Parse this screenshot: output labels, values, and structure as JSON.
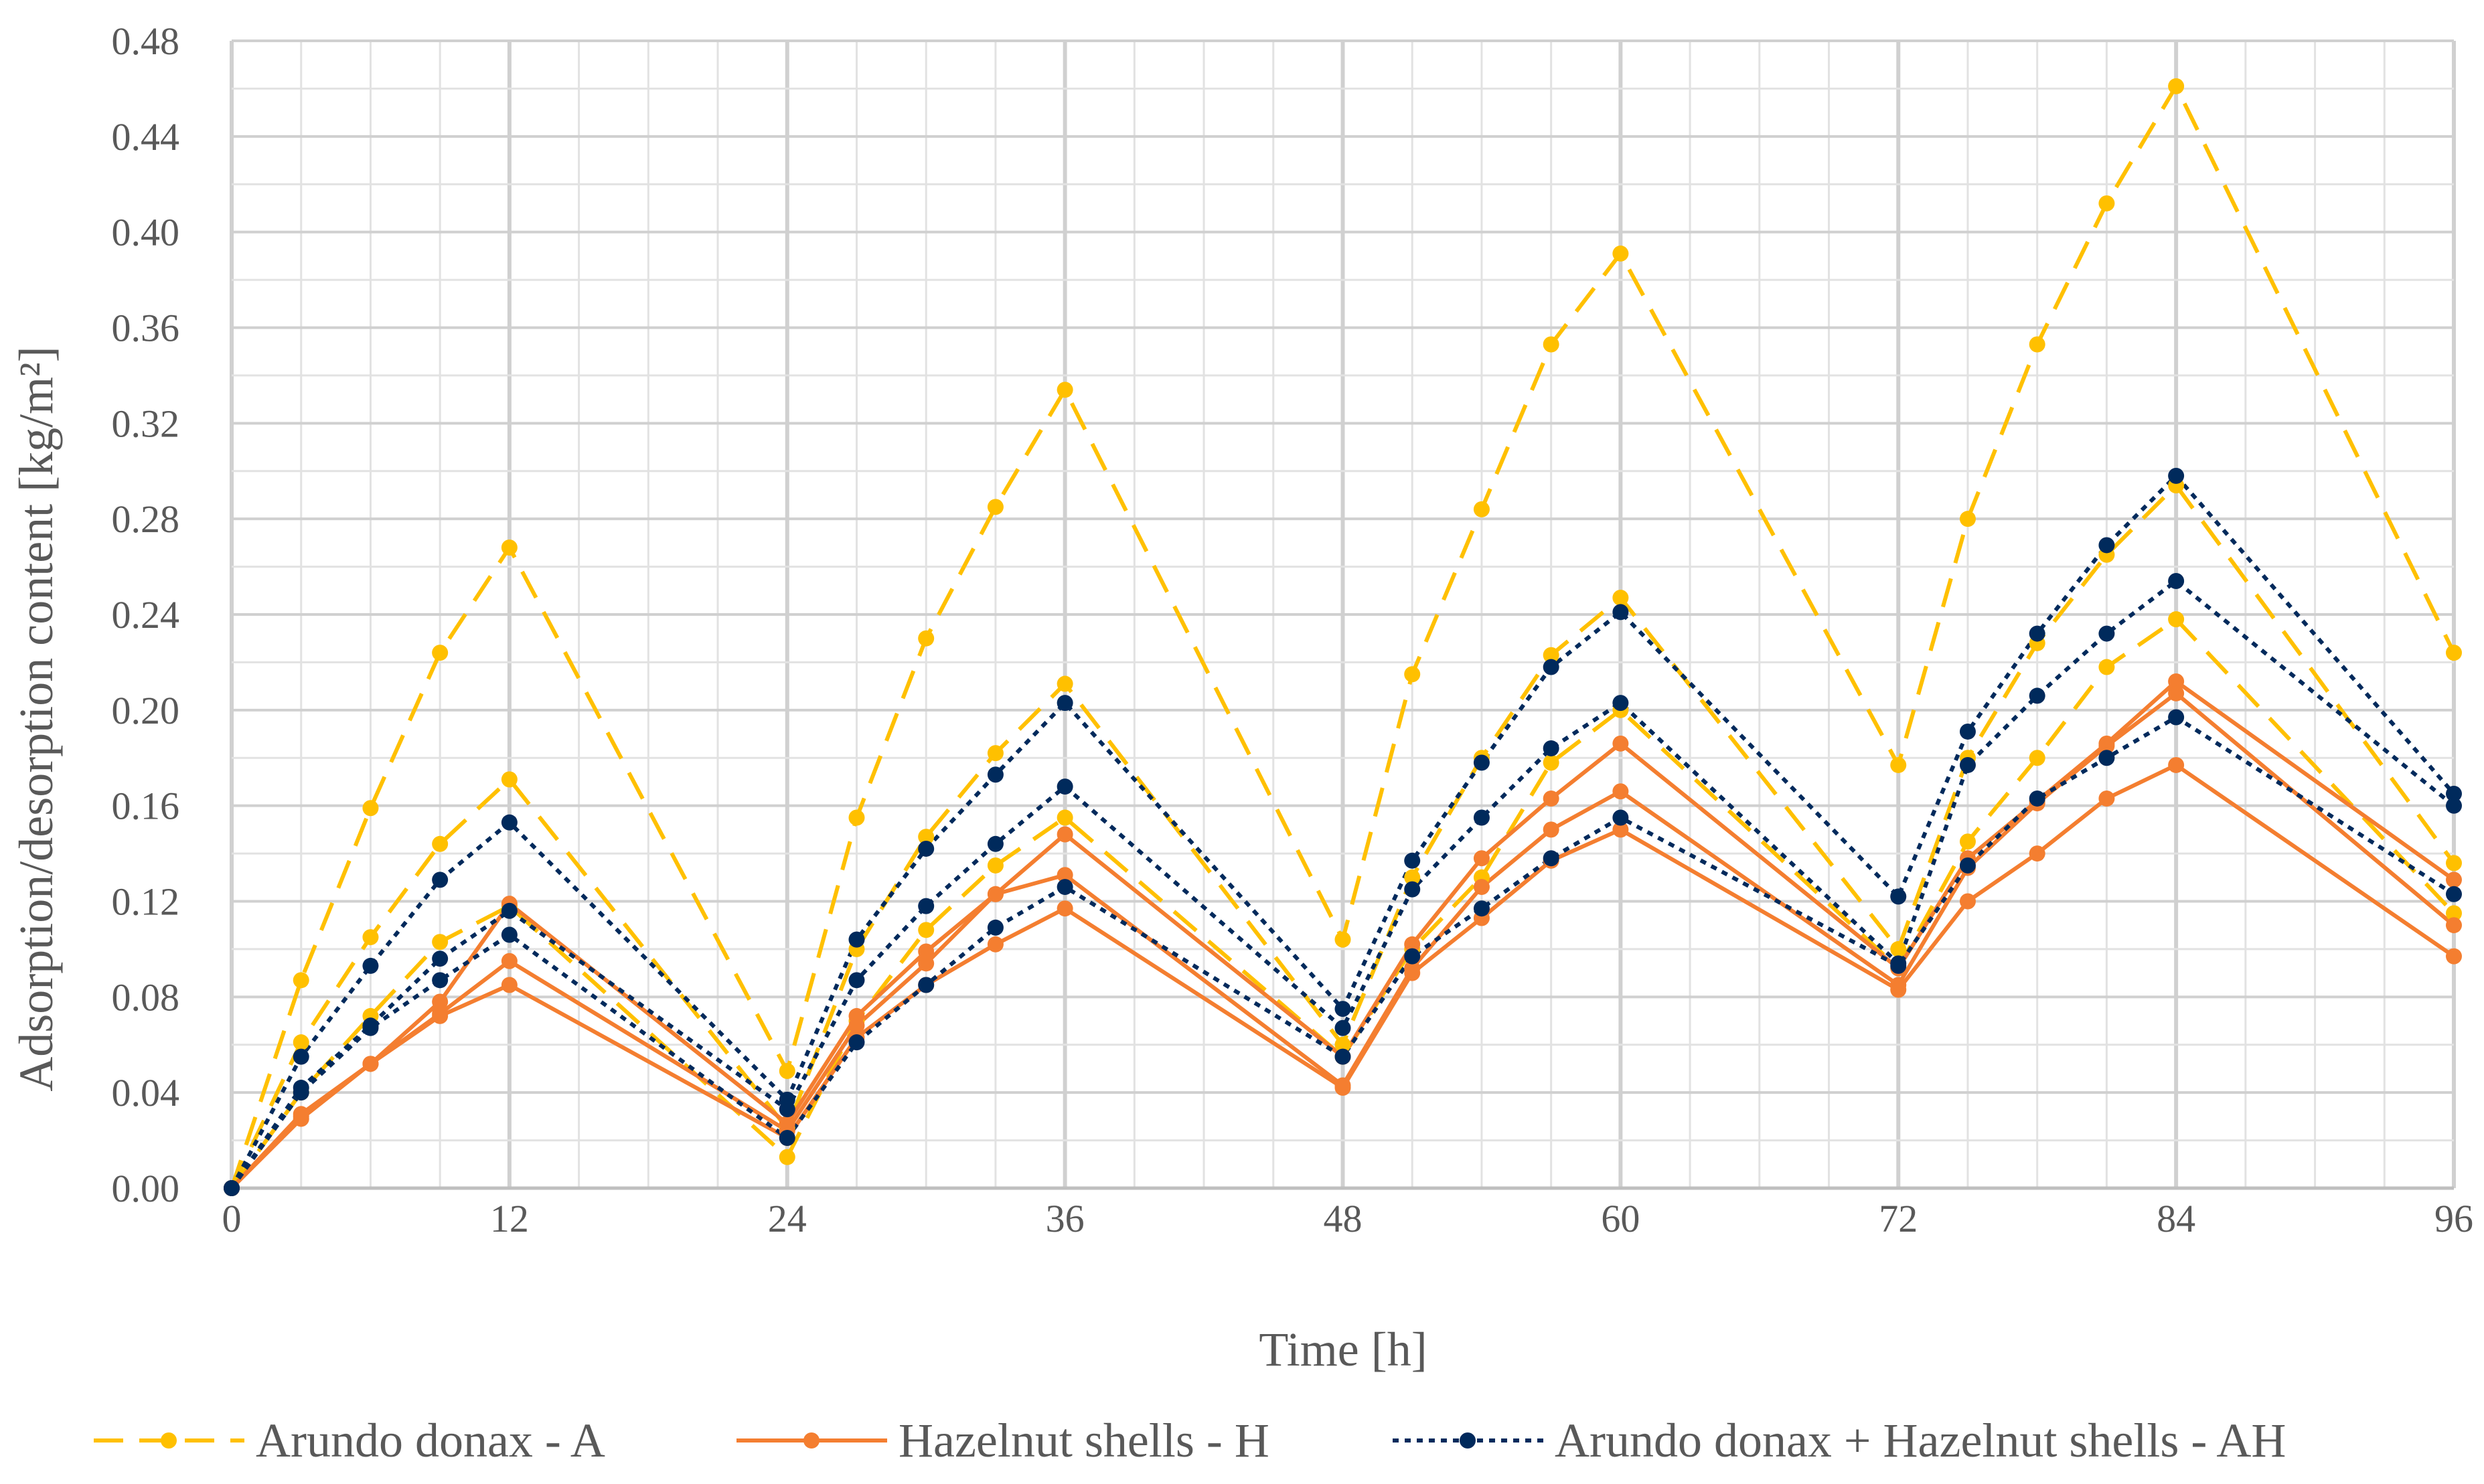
{
  "chart_data": {
    "type": "line",
    "title": "",
    "xlabel": "Time [h]",
    "ylabel": "Adsorption/desorption content [kg/m²]",
    "xlim": [
      0,
      96
    ],
    "ylim": [
      0,
      0.48
    ],
    "x_ticks": [
      "0",
      "12",
      "24",
      "36",
      "48",
      "60",
      "72",
      "84",
      "96"
    ],
    "y_ticks": [
      "0.00",
      "0.04",
      "0.08",
      "0.12",
      "0.16",
      "0.20",
      "0.24",
      "0.28",
      "0.32",
      "0.36",
      "0.40",
      "0.44",
      "0.48"
    ],
    "grid": true,
    "legend_position": "bottom",
    "x": [
      0,
      3,
      6,
      9,
      12,
      24,
      27,
      30,
      33,
      36,
      48,
      51,
      54,
      57,
      60,
      72,
      75,
      78,
      81,
      84,
      96
    ],
    "series": [
      {
        "name": "Arundo donax - A",
        "group": "A",
        "color": "#FFC000",
        "dash": "dashed",
        "values": [
          0,
          0.087,
          0.159,
          0.224,
          0.268,
          0.049,
          0.155,
          0.23,
          0.285,
          0.334,
          0.104,
          0.215,
          0.284,
          0.353,
          0.391,
          0.177,
          0.28,
          0.353,
          0.412,
          0.461,
          0.224
        ]
      },
      {
        "name": "Arundo donax - A",
        "group": "A",
        "color": "#FFC000",
        "dash": "dashed",
        "values": [
          0,
          0.061,
          0.105,
          0.144,
          0.171,
          0.025,
          0.1,
          0.147,
          0.182,
          0.211,
          0.06,
          0.13,
          0.18,
          0.223,
          0.247,
          0.1,
          0.18,
          0.228,
          0.265,
          0.294,
          0.136
        ]
      },
      {
        "name": "Arundo donax - A",
        "group": "A",
        "color": "#FFC000",
        "dash": "dashed",
        "values": [
          0,
          0.04,
          0.072,
          0.103,
          0.118,
          0.013,
          0.07,
          0.108,
          0.135,
          0.155,
          0.055,
          0.1,
          0.13,
          0.178,
          0.2,
          0.092,
          0.145,
          0.18,
          0.218,
          0.238,
          0.115
        ]
      },
      {
        "name": "Hazelnut shells - H",
        "group": "H",
        "color": "#F47E30",
        "dash": "solid",
        "values": [
          0,
          0.031,
          0.052,
          0.078,
          0.119,
          0.027,
          0.072,
          0.099,
          0.123,
          0.148,
          0.055,
          0.102,
          0.138,
          0.163,
          0.186,
          0.092,
          0.138,
          0.162,
          0.186,
          0.212,
          0.129
        ]
      },
      {
        "name": "Hazelnut shells - H",
        "group": "H",
        "color": "#F47E30",
        "dash": "solid",
        "values": [
          0,
          0.03,
          0.052,
          0.073,
          0.095,
          0.024,
          0.068,
          0.094,
          0.123,
          0.131,
          0.043,
          0.092,
          0.126,
          0.15,
          0.166,
          0.085,
          0.134,
          0.161,
          0.185,
          0.207,
          0.11
        ]
      },
      {
        "name": "Hazelnut shells - H",
        "group": "H",
        "color": "#F47E30",
        "dash": "solid",
        "values": [
          0,
          0.029,
          0.052,
          0.072,
          0.085,
          0.021,
          0.063,
          0.085,
          0.102,
          0.117,
          0.042,
          0.09,
          0.113,
          0.137,
          0.15,
          0.083,
          0.12,
          0.14,
          0.163,
          0.177,
          0.097
        ]
      },
      {
        "name": "Arundo donax + Hazelnut shells - AH",
        "group": "AH",
        "color": "#002A5C",
        "dash": "dotted",
        "values": [
          0,
          0.055,
          0.093,
          0.129,
          0.153,
          0.037,
          0.104,
          0.142,
          0.173,
          0.203,
          0.075,
          0.137,
          0.178,
          0.218,
          0.241,
          0.122,
          0.191,
          0.232,
          0.269,
          0.298,
          0.165
        ]
      },
      {
        "name": "Arundo donax + Hazelnut shells - AH",
        "group": "AH",
        "color": "#002A5C",
        "dash": "dotted",
        "values": [
          0,
          0.042,
          0.068,
          0.096,
          0.116,
          0.033,
          0.087,
          0.118,
          0.144,
          0.168,
          0.067,
          0.125,
          0.155,
          0.184,
          0.203,
          0.094,
          0.177,
          0.206,
          0.232,
          0.254,
          0.16
        ]
      },
      {
        "name": "Arundo donax + Hazelnut shells - AH",
        "group": "AH",
        "color": "#002A5C",
        "dash": "dotted",
        "values": [
          0,
          0.04,
          0.067,
          0.087,
          0.106,
          0.021,
          0.061,
          0.085,
          0.109,
          0.126,
          0.055,
          0.097,
          0.117,
          0.138,
          0.155,
          0.093,
          0.135,
          0.163,
          0.18,
          0.197,
          0.123
        ]
      }
    ],
    "legend": [
      {
        "label": "Arundo donax - A",
        "color": "#FFC000",
        "dash": "dashed"
      },
      {
        "label": "Hazelnut shells - H",
        "color": "#F47E30",
        "dash": "solid"
      },
      {
        "label": "Arundo donax + Hazelnut shells - AH",
        "color": "#002A5C",
        "dash": "dotted"
      }
    ]
  }
}
